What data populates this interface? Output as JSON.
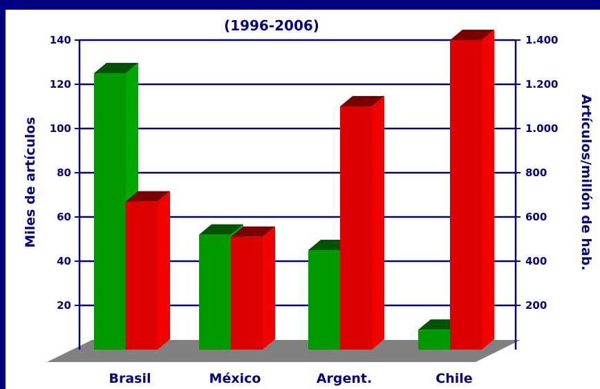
{
  "colors": {
    "background": "#000080",
    "green": "#009900",
    "red": "#dd0000",
    "grid": "#000080",
    "floor": "#808080"
  },
  "chart_data": {
    "type": "bar",
    "title": "(1996-2006)",
    "categories": [
      "Brasil",
      "México",
      "Argent.",
      "Chile"
    ],
    "series": [
      {
        "axis": "left",
        "color": "#009900",
        "values": [
          125,
          52,
          45,
          9
        ]
      },
      {
        "axis": "right",
        "color": "#dd0000",
        "values": [
          670,
          510,
          1100,
          1400
        ]
      }
    ],
    "ylabel": "Miles de artículos",
    "ylabel_right": "Artículos/millón de hab.",
    "ylim": [
      0,
      140
    ],
    "ylim_right": [
      0,
      1400
    ],
    "yticks": [
      "20",
      "40",
      "60",
      "80",
      "100",
      "120",
      "140"
    ],
    "yticks_right": [
      "200",
      "400",
      "600",
      "800",
      "1.000",
      "1.200",
      "1.400"
    ],
    "grid": true
  }
}
